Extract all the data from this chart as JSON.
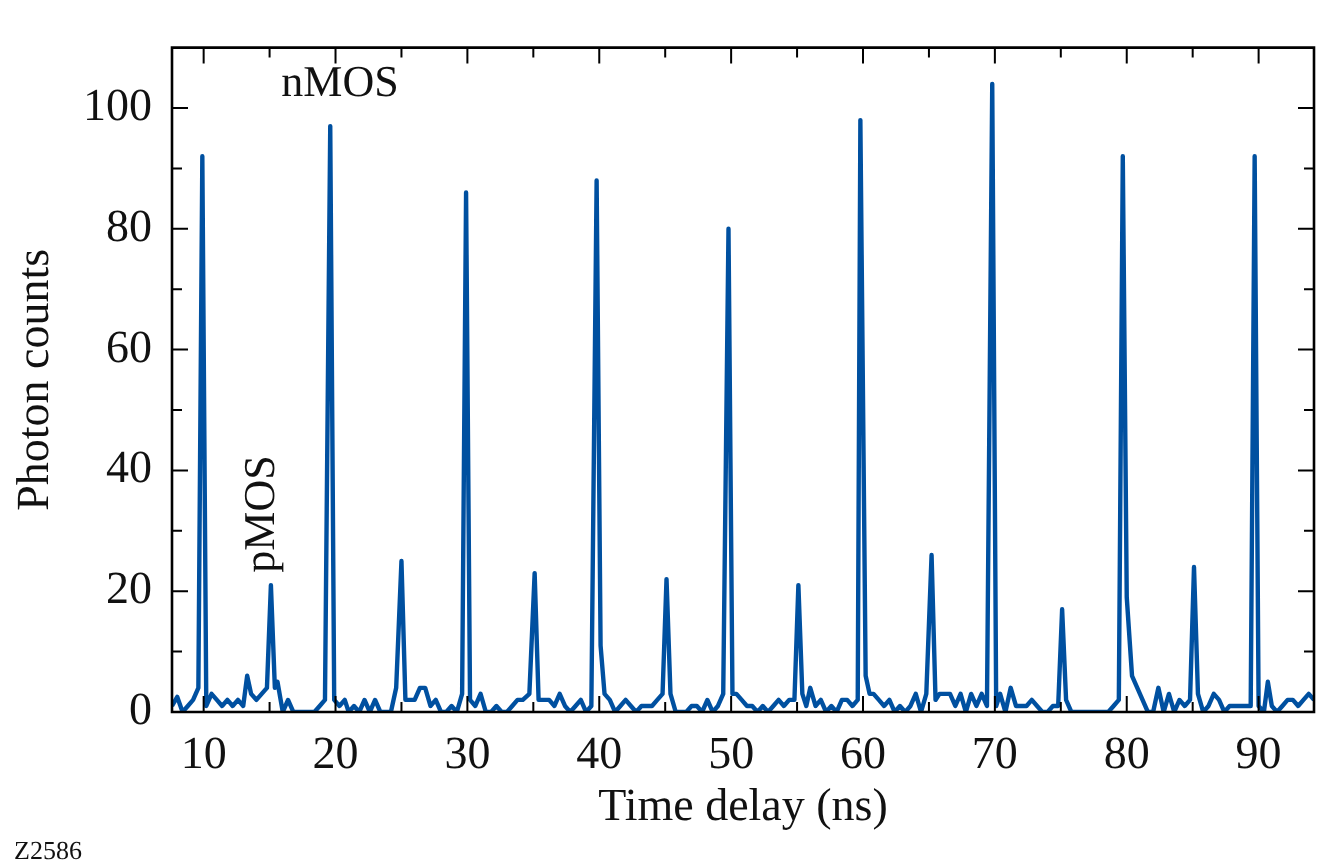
{
  "chart_data": {
    "type": "line",
    "xlabel": "Time delay (ns)",
    "ylabel": "Photon counts",
    "xlim": [
      7.6,
      94.2
    ],
    "ylim": [
      0,
      110
    ],
    "xticks": [
      10,
      {
        "value": 15,
        "label": null
      },
      20,
      {
        "value": 25,
        "label": null
      },
      30,
      {
        "value": 35,
        "label": null
      },
      40,
      {
        "value": 45,
        "label": null
      },
      50,
      {
        "value": 55,
        "label": null
      },
      60,
      {
        "value": 65,
        "label": null
      },
      70,
      {
        "value": 75,
        "label": null
      },
      80,
      {
        "value": 85,
        "label": null
      },
      90
    ],
    "yticks": [
      0,
      {
        "value": 10,
        "label": null
      },
      20,
      {
        "value": 30,
        "label": null
      },
      40,
      {
        "value": 50,
        "label": null
      },
      60,
      {
        "value": 70,
        "label": null
      },
      80,
      {
        "value": 90,
        "label": null
      },
      100
    ],
    "grid": false,
    "legend": false,
    "marker": "none",
    "line_style": "solid",
    "annotations": [
      "nMOS",
      "pMOS",
      "Z2586"
    ],
    "series": [
      {
        "color": "#0050a0",
        "x": [
          7.6,
          8,
          8.4,
          8.8,
          9.2,
          9.6,
          9.9,
          10.2,
          10.6,
          11,
          11.4,
          11.8,
          12.2,
          12.6,
          13,
          13.3,
          13.6,
          14,
          14.4,
          14.8,
          15.1,
          15.4,
          15.6,
          16,
          16.4,
          16.8,
          17.2,
          17.6,
          18,
          18.4,
          18.8,
          19.2,
          19.6,
          19.9,
          20.3,
          20.7,
          21,
          21.4,
          21.8,
          22.2,
          22.6,
          23,
          23.4,
          23.8,
          24.2,
          24.6,
          25,
          25.3,
          25.7,
          26,
          26.4,
          26.8,
          27.2,
          27.6,
          28,
          28.4,
          28.8,
          29.2,
          29.6,
          29.9,
          30.2,
          30.6,
          31,
          31.4,
          31.8,
          32.2,
          32.6,
          33,
          33.4,
          33.8,
          34.2,
          34.7,
          35.1,
          35.4,
          35.8,
          36.2,
          36.6,
          37,
          37.4,
          37.8,
          38.2,
          38.6,
          39,
          39.4,
          39.8,
          40.1,
          40.4,
          40.8,
          41.2,
          41.6,
          42,
          42.4,
          42.8,
          43.2,
          43.6,
          44,
          44.4,
          44.8,
          45.1,
          45.4,
          45.8,
          46.2,
          46.6,
          47,
          47.4,
          47.8,
          48.2,
          48.6,
          49,
          49.4,
          49.8,
          50.1,
          50.4,
          50.8,
          51.2,
          51.6,
          52,
          52.4,
          52.8,
          53.2,
          53.6,
          54,
          54.4,
          54.8,
          55.1,
          55.4,
          55.7,
          56,
          56.4,
          56.8,
          57.2,
          57.6,
          58,
          58.4,
          58.8,
          59.2,
          59.6,
          59.8,
          60.2,
          60.5,
          60.8,
          61.2,
          61.6,
          62,
          62.4,
          62.8,
          63.2,
          63.6,
          64,
          64.4,
          64.8,
          65.2,
          65.5,
          65.8,
          66.2,
          66.6,
          67,
          67.4,
          67.8,
          68.2,
          68.6,
          69,
          69.4,
          69.8,
          70.1,
          70.4,
          70.8,
          71.2,
          71.6,
          72,
          72.4,
          72.8,
          73.2,
          73.6,
          74,
          74.4,
          74.8,
          75.1,
          75.4,
          75.8,
          76.2,
          76.6,
          77,
          77.4,
          77.8,
          78.2,
          78.6,
          79,
          79.4,
          79.7,
          80,
          80.4,
          80.8,
          81.2,
          81.6,
          82,
          82.4,
          82.8,
          83.2,
          83.6,
          84,
          84.4,
          84.8,
          85.1,
          85.4,
          85.8,
          86.2,
          86.6,
          87,
          87.4,
          87.8,
          88.2,
          88.6,
          89,
          89.4,
          89.7,
          90,
          90.4,
          90.7,
          91,
          91.4,
          91.8,
          92.2,
          92.6,
          93,
          93.4,
          93.8,
          94.2
        ],
        "values": [
          1,
          2.5,
          0,
          1,
          2,
          4,
          92,
          1,
          3,
          2,
          1,
          2,
          1,
          2,
          1,
          6,
          3,
          2,
          3,
          4,
          21,
          4,
          5,
          0,
          2,
          0,
          0,
          0,
          0,
          0,
          1,
          2,
          97,
          2,
          1,
          2,
          0,
          1,
          0,
          2,
          0,
          2,
          0,
          0,
          0,
          4,
          25,
          2,
          2,
          2,
          4,
          4,
          1,
          2,
          0,
          0,
          1,
          0,
          3,
          86,
          2,
          1,
          3,
          0,
          0,
          1,
          0,
          0,
          1,
          2,
          2,
          3,
          23,
          2,
          2,
          2,
          1,
          3,
          1,
          0,
          1,
          2,
          0,
          1,
          88,
          11,
          3,
          2,
          0,
          1,
          2,
          1,
          0,
          1,
          1,
          1,
          2,
          3,
          22,
          3,
          0,
          0,
          0,
          1,
          1,
          0,
          2,
          0,
          1,
          3,
          80,
          3,
          3,
          2,
          1,
          1,
          0,
          1,
          0,
          1,
          2,
          1,
          2,
          2,
          21,
          3,
          1,
          4,
          1,
          2,
          0,
          1,
          0,
          2,
          2,
          1,
          2,
          98,
          6,
          3,
          3,
          2,
          1,
          2,
          0,
          1,
          0,
          1,
          3,
          0,
          3,
          26,
          2,
          3,
          3,
          3,
          1,
          3,
          0,
          3,
          1,
          3,
          1,
          104,
          1,
          3,
          0,
          4,
          1,
          1,
          1,
          2,
          1,
          0,
          0,
          1,
          1,
          17,
          2,
          0,
          0,
          0,
          0,
          0,
          0,
          0,
          0,
          1,
          2,
          92,
          19,
          6,
          4,
          2,
          0,
          0,
          4,
          0,
          3,
          0,
          2,
          1,
          2,
          24,
          3,
          0,
          1,
          3,
          2,
          0,
          1,
          1,
          1,
          1,
          1,
          92,
          1,
          0,
          5,
          1,
          0,
          1,
          2,
          2,
          1,
          2,
          3,
          2
        ]
      }
    ]
  }
}
